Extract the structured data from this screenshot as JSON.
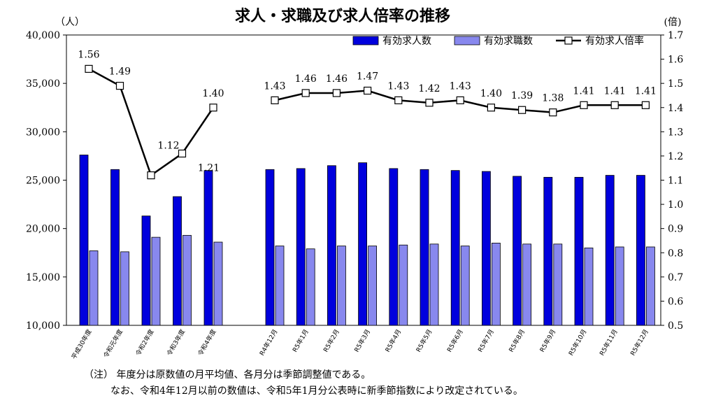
{
  "chart_data": {
    "type": "bar",
    "title": "求人・求職及び求人倍率の推移",
    "y_left_unit": "（人）",
    "y_right_unit": "(倍)",
    "ylim_left": [
      10000,
      40000
    ],
    "ylim_right": [
      0.5,
      1.7
    ],
    "y_left_ticks": [
      "10,000",
      "15,000",
      "20,000",
      "25,000",
      "30,000",
      "35,000",
      "40,000"
    ],
    "y_right_ticks": [
      "0.5",
      "0.6",
      "0.7",
      "0.8",
      "0.9",
      "1.0",
      "1.1",
      "1.2",
      "1.3",
      "1.4",
      "1.5",
      "1.6",
      "1.7"
    ],
    "groups": [
      {
        "categories": [
          "平成30年度",
          "令和元年度",
          "令和2年度",
          "令和3年度",
          "令和4年度"
        ],
        "series": [
          {
            "name": "有効求人数",
            "values": [
              27600,
              26100,
              21300,
              23300,
              26000
            ]
          },
          {
            "name": "有効求職数",
            "values": [
              17700,
              17600,
              19100,
              19300,
              18600
            ]
          },
          {
            "name": "有効求人倍率",
            "values": [
              1.56,
              1.49,
              1.12,
              1.21,
              1.4
            ]
          }
        ],
        "ratio_labels": [
          "1.56",
          "1.49",
          "1.12",
          "1.21",
          "1.40"
        ]
      },
      {
        "categories": [
          "R4年12月",
          "R5年1月",
          "R5年2月",
          "R5年3月",
          "R5年4月",
          "R5年5月",
          "R5年6月",
          "R5年7月",
          "R5年8月",
          "R5年9月",
          "R5年10月",
          "R5年11月",
          "R5年12月"
        ],
        "series": [
          {
            "name": "有効求人数",
            "values": [
              26100,
              26200,
              26500,
              26800,
              26200,
              26100,
              26000,
              25900,
              25400,
              25300,
              25300,
              25500,
              25500
            ]
          },
          {
            "name": "有効求職数",
            "values": [
              18200,
              17900,
              18200,
              18200,
              18300,
              18400,
              18200,
              18500,
              18400,
              18400,
              18000,
              18100,
              18100
            ]
          },
          {
            "name": "有効求人倍率",
            "values": [
              1.43,
              1.46,
              1.46,
              1.47,
              1.43,
              1.42,
              1.43,
              1.4,
              1.39,
              1.38,
              1.41,
              1.41,
              1.41
            ]
          }
        ],
        "ratio_labels": [
          "1.43",
          "1.46",
          "1.46",
          "1.47",
          "1.43",
          "1.42",
          "1.43",
          "1.40",
          "1.39",
          "1.38",
          "1.41",
          "1.41",
          "1.41"
        ]
      }
    ],
    "legend": {
      "position": "top-right",
      "items": [
        {
          "label": "有効求人数",
          "kind": "bar",
          "color": "#0000dd"
        },
        {
          "label": "有効求職数",
          "kind": "bar",
          "color": "#8888ee"
        },
        {
          "label": "有効求人倍率",
          "kind": "line",
          "color": "#000000"
        }
      ]
    }
  },
  "notes": {
    "line1": "（注）  年度分は原数値の月平均値、各月分は季節調整値である。",
    "line2": "なお、令和4年12月以前の数値は、令和5年1月分公表時に新季節指数により改定されている。"
  },
  "colors": {
    "bar_jobs": "#0000dd",
    "bar_seekers": "#8888ee",
    "line": "#000000"
  }
}
